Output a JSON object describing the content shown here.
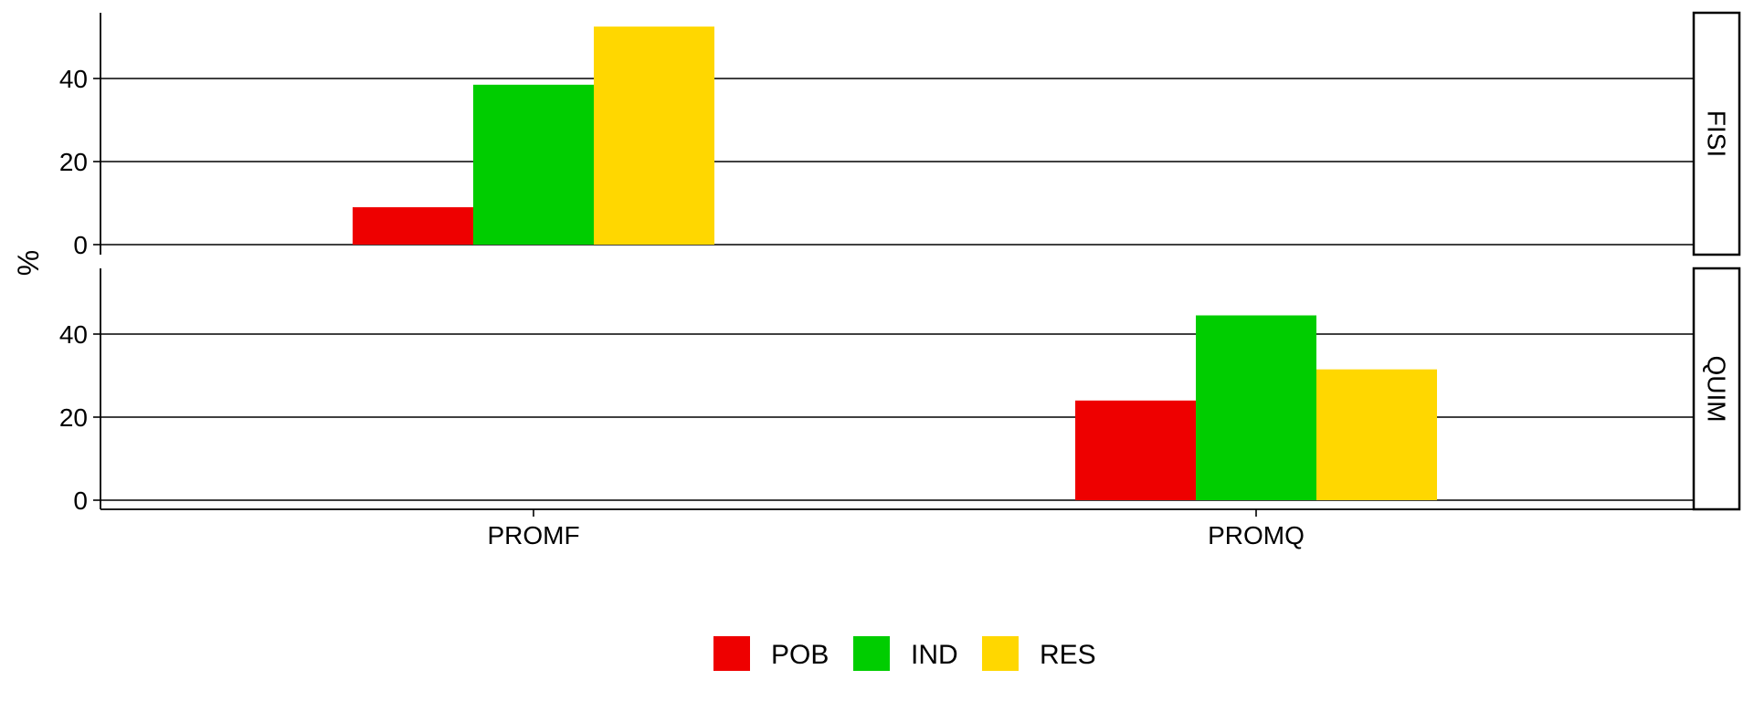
{
  "chart_data": {
    "type": "bar",
    "ylabel": "%",
    "xlabel": "",
    "ylim": [
      0,
      55
    ],
    "yticks": [
      0,
      20,
      40
    ],
    "categories": [
      "PROMF",
      "PROMQ"
    ],
    "legend_position": "bottom",
    "grid": "horizontal",
    "series_meta": [
      {
        "name": "POB",
        "color": "#EE0000"
      },
      {
        "name": "IND",
        "color": "#00CD00"
      },
      {
        "name": "RES",
        "color": "#FFD700"
      }
    ],
    "panels": [
      {
        "strip": "FISI",
        "values": {
          "PROMF": {
            "POB": 9,
            "IND": 38.5,
            "RES": 52.5
          }
        }
      },
      {
        "strip": "QUIM",
        "values": {
          "PROMQ": {
            "POB": 24,
            "IND": 44.5,
            "RES": 31.5
          }
        }
      }
    ]
  }
}
